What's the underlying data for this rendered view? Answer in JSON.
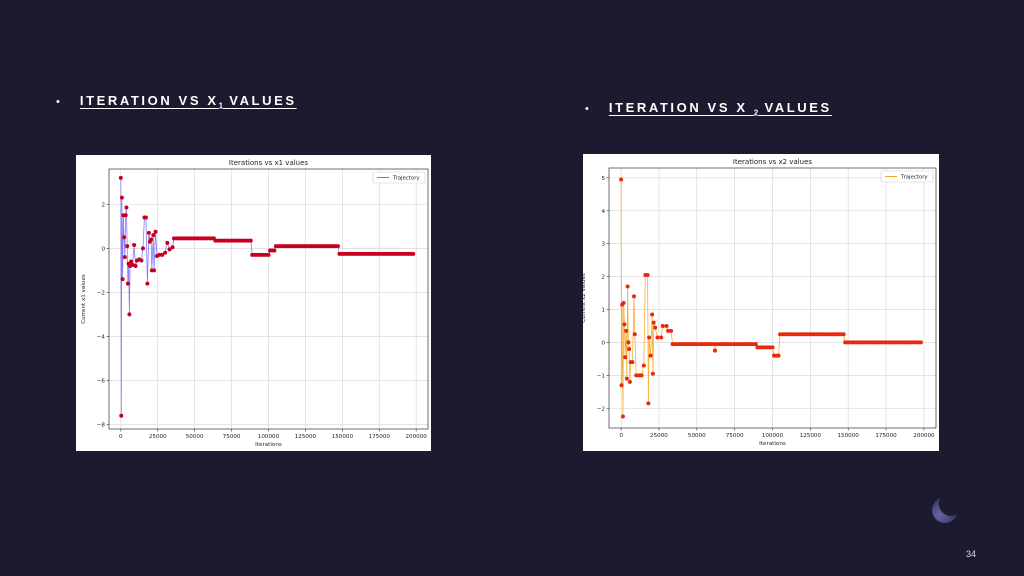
{
  "headings": [
    {
      "bullet": "•",
      "prefix": "ITERATION VS X",
      "sub": "1",
      "suffix": " VALUES"
    },
    {
      "bullet": "•",
      "prefix": "ITERATION VS X ",
      "sub": "2",
      "suffix": "  VALUES"
    }
  ],
  "page_number": "34",
  "chart_data": [
    {
      "type": "line",
      "title": "Iterations vs x1 values",
      "xlabel": "Iterations",
      "ylabel": "Current x1 values",
      "xlim": [
        -8000,
        208000
      ],
      "ylim": [
        -8.2,
        3.6
      ],
      "xticks": [
        0,
        25000,
        50000,
        75000,
        100000,
        125000,
        150000,
        175000,
        200000
      ],
      "xtick_labels": [
        "0",
        "25000",
        "50000",
        "75000",
        "100000",
        "125000",
        "150000",
        "175000",
        "200000"
      ],
      "yticks": [
        -8,
        -6,
        -4,
        -2,
        0,
        2
      ],
      "ytick_labels": [
        "−8",
        "−6",
        "−4",
        "−2",
        "0",
        "2"
      ],
      "grid": true,
      "legend": {
        "position": "top-right",
        "entries": [
          "Trajectory"
        ]
      },
      "line_color": "#7b6ef6",
      "marker_color": "#c8001e",
      "series": [
        {
          "name": "Trajectory",
          "points": [
            [
              0,
              3.2
            ],
            [
              300,
              -7.6
            ],
            [
              700,
              2.3
            ],
            [
              1200,
              -1.4
            ],
            [
              1700,
              1.5
            ],
            [
              2200,
              0.5
            ],
            [
              2700,
              -0.4
            ],
            [
              3300,
              1.5
            ],
            [
              3800,
              1.85
            ],
            [
              4300,
              0.1
            ],
            [
              4800,
              -1.6
            ],
            [
              5300,
              -0.7
            ],
            [
              5800,
              -3.0
            ],
            [
              6300,
              -0.8
            ],
            [
              7000,
              -0.6
            ],
            [
              8000,
              -0.75
            ],
            [
              9000,
              0.15
            ],
            [
              10000,
              -0.8
            ],
            [
              11000,
              -0.55
            ],
            [
              12500,
              -0.5
            ],
            [
              14000,
              -0.55
            ],
            [
              15000,
              0.0
            ],
            [
              16000,
              1.4
            ],
            [
              17000,
              1.4
            ],
            [
              18000,
              -1.6
            ],
            [
              19000,
              0.7
            ],
            [
              19700,
              0.3
            ],
            [
              20500,
              0.4
            ],
            [
              21000,
              -1.0
            ],
            [
              22000,
              0.6
            ],
            [
              22500,
              -1.0
            ],
            [
              23500,
              0.75
            ],
            [
              24500,
              -0.35
            ],
            [
              26000,
              -0.3
            ],
            [
              28000,
              -0.3
            ],
            [
              30000,
              -0.2
            ],
            [
              31500,
              0.25
            ],
            [
              33000,
              -0.05
            ],
            [
              35000,
              0.05
            ],
            [
              36000,
              0.45
            ],
            [
              63000,
              0.45
            ],
            [
              64000,
              0.35
            ],
            [
              88000,
              0.35
            ],
            [
              89000,
              -0.3
            ],
            [
              100000,
              -0.3
            ],
            [
              101000,
              -0.1
            ],
            [
              104000,
              -0.1
            ],
            [
              105000,
              0.1
            ],
            [
              147000,
              0.1
            ],
            [
              148000,
              -0.25
            ],
            [
              198000,
              -0.25
            ]
          ]
        }
      ]
    },
    {
      "type": "line",
      "title": "Iterations vs x2 values",
      "xlabel": "Iterations",
      "ylabel": "Current x2 values",
      "xlim": [
        -8000,
        208000
      ],
      "ylim": [
        -2.6,
        5.3
      ],
      "xticks": [
        0,
        25000,
        50000,
        75000,
        100000,
        125000,
        150000,
        175000,
        200000
      ],
      "xtick_labels": [
        "0",
        "25000",
        "50000",
        "75000",
        "100000",
        "125000",
        "150000",
        "175000",
        "200000"
      ],
      "yticks": [
        -2,
        -1,
        0,
        1,
        2,
        3,
        4,
        5
      ],
      "ytick_labels": [
        "−2",
        "−1",
        "0",
        "1",
        "2",
        "3",
        "4",
        "5"
      ],
      "grid": true,
      "legend": {
        "position": "top-right",
        "entries": [
          "Trajectory"
        ]
      },
      "line_color": "#f5a623",
      "marker_color": "#e82a0c",
      "series": [
        {
          "name": "Trajectory",
          "points": [
            [
              0,
              4.95
            ],
            [
              300,
              -1.3
            ],
            [
              700,
              1.15
            ],
            [
              1200,
              -2.25
            ],
            [
              1700,
              1.2
            ],
            [
              2200,
              0.55
            ],
            [
              2700,
              -0.45
            ],
            [
              3300,
              0.35
            ],
            [
              3800,
              -1.1
            ],
            [
              4300,
              1.7
            ],
            [
              4800,
              0.0
            ],
            [
              5300,
              -0.2
            ],
            [
              5800,
              -1.2
            ],
            [
              6300,
              -0.6
            ],
            [
              7500,
              -0.6
            ],
            [
              8500,
              1.4
            ],
            [
              9000,
              0.25
            ],
            [
              10000,
              -1.0
            ],
            [
              12000,
              -1.0
            ],
            [
              13500,
              -1.0
            ],
            [
              15000,
              -0.7
            ],
            [
              16000,
              2.05
            ],
            [
              17500,
              2.05
            ],
            [
              18000,
              -1.85
            ],
            [
              18500,
              0.15
            ],
            [
              19500,
              -0.4
            ],
            [
              20500,
              0.85
            ],
            [
              21000,
              -0.95
            ],
            [
              21500,
              0.6
            ],
            [
              22500,
              0.45
            ],
            [
              24000,
              0.15
            ],
            [
              26500,
              0.15
            ],
            [
              27500,
              0.5
            ],
            [
              30000,
              0.5
            ],
            [
              31000,
              0.35
            ],
            [
              33000,
              0.35
            ],
            [
              34000,
              -0.05
            ],
            [
              61000,
              -0.05
            ],
            [
              62000,
              -0.25
            ],
            [
              63000,
              -0.05
            ],
            [
              89000,
              -0.05
            ],
            [
              90000,
              -0.15
            ],
            [
              100000,
              -0.15
            ],
            [
              101000,
              -0.4
            ],
            [
              104000,
              -0.4
            ],
            [
              105000,
              0.25
            ],
            [
              147000,
              0.25
            ],
            [
              148000,
              0.0
            ],
            [
              198000,
              0.0
            ]
          ]
        }
      ]
    }
  ]
}
